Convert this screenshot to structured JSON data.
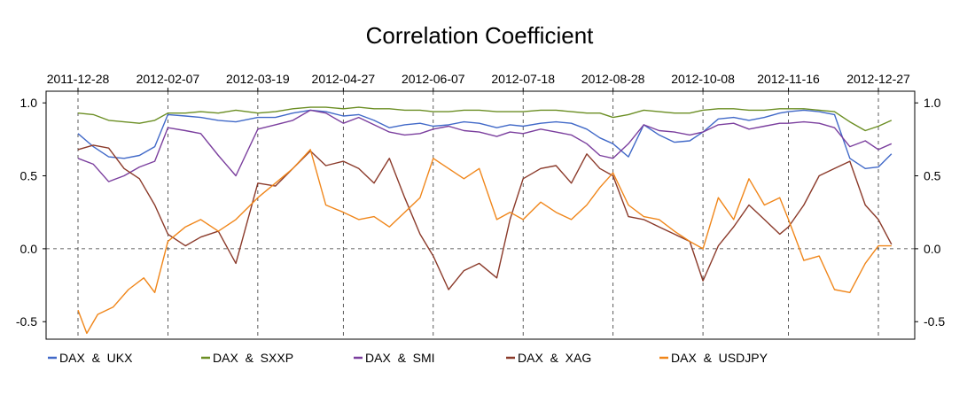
{
  "chart_data": {
    "type": "line",
    "title": "Correlation Coefficient",
    "x_tick_labels": [
      "2011-12-28",
      "2012-02-07",
      "2012-03-19",
      "2012-04-27",
      "2012-06-07",
      "2012-07-18",
      "2012-08-28",
      "2012-10-08",
      "2012-11-16",
      "2012-12-27"
    ],
    "y_tick_labels": [
      "1.0",
      "0.5",
      "0.0",
      "-0.5"
    ],
    "ylim": [
      -0.62,
      1.08
    ],
    "xlim": [
      "2011-12-28",
      "2013-01-02"
    ],
    "grid": "dashed vertical at each x tick, dashed horizontal at 0.0",
    "legend_position": "bottom",
    "series": [
      {
        "name": "DAX  &  UKX",
        "color": "#4169c8",
        "points": [
          [
            "2011-12-28",
            0.79
          ],
          [
            "2012-01-04",
            0.7
          ],
          [
            "2012-01-11",
            0.63
          ],
          [
            "2012-01-18",
            0.62
          ],
          [
            "2012-01-25",
            0.64
          ],
          [
            "2012-02-01",
            0.7
          ],
          [
            "2012-02-07",
            0.92
          ],
          [
            "2012-02-15",
            0.91
          ],
          [
            "2012-02-22",
            0.9
          ],
          [
            "2012-03-01",
            0.88
          ],
          [
            "2012-03-09",
            0.87
          ],
          [
            "2012-03-19",
            0.9
          ],
          [
            "2012-03-27",
            0.9
          ],
          [
            "2012-04-04",
            0.93
          ],
          [
            "2012-04-12",
            0.95
          ],
          [
            "2012-04-19",
            0.94
          ],
          [
            "2012-04-27",
            0.91
          ],
          [
            "2012-05-04",
            0.92
          ],
          [
            "2012-05-11",
            0.88
          ],
          [
            "2012-05-18",
            0.83
          ],
          [
            "2012-05-25",
            0.85
          ],
          [
            "2012-06-01",
            0.86
          ],
          [
            "2012-06-07",
            0.84
          ],
          [
            "2012-06-14",
            0.85
          ],
          [
            "2012-06-21",
            0.87
          ],
          [
            "2012-06-28",
            0.86
          ],
          [
            "2012-07-06",
            0.83
          ],
          [
            "2012-07-12",
            0.85
          ],
          [
            "2012-07-18",
            0.84
          ],
          [
            "2012-07-26",
            0.86
          ],
          [
            "2012-08-02",
            0.87
          ],
          [
            "2012-08-09",
            0.86
          ],
          [
            "2012-08-16",
            0.82
          ],
          [
            "2012-08-22",
            0.76
          ],
          [
            "2012-08-28",
            0.72
          ],
          [
            "2012-09-04",
            0.63
          ],
          [
            "2012-09-11",
            0.85
          ],
          [
            "2012-09-18",
            0.78
          ],
          [
            "2012-09-25",
            0.73
          ],
          [
            "2012-10-02",
            0.74
          ],
          [
            "2012-10-08",
            0.8
          ],
          [
            "2012-10-15",
            0.89
          ],
          [
            "2012-10-22",
            0.9
          ],
          [
            "2012-10-29",
            0.88
          ],
          [
            "2012-11-05",
            0.9
          ],
          [
            "2012-11-12",
            0.93
          ],
          [
            "2012-11-16",
            0.94
          ],
          [
            "2012-11-23",
            0.95
          ],
          [
            "2012-11-30",
            0.94
          ],
          [
            "2012-12-07",
            0.92
          ],
          [
            "2012-12-14",
            0.62
          ],
          [
            "2012-12-21",
            0.55
          ],
          [
            "2012-12-27",
            0.56
          ],
          [
            "2013-01-02",
            0.65
          ]
        ]
      },
      {
        "name": "DAX  &  SXXP",
        "color": "#6b8e23",
        "points": [
          [
            "2011-12-28",
            0.93
          ],
          [
            "2012-01-04",
            0.92
          ],
          [
            "2012-01-11",
            0.88
          ],
          [
            "2012-01-18",
            0.87
          ],
          [
            "2012-01-25",
            0.86
          ],
          [
            "2012-02-01",
            0.88
          ],
          [
            "2012-02-07",
            0.93
          ],
          [
            "2012-02-15",
            0.93
          ],
          [
            "2012-02-22",
            0.94
          ],
          [
            "2012-03-01",
            0.93
          ],
          [
            "2012-03-09",
            0.95
          ],
          [
            "2012-03-19",
            0.93
          ],
          [
            "2012-03-27",
            0.94
          ],
          [
            "2012-04-04",
            0.96
          ],
          [
            "2012-04-12",
            0.97
          ],
          [
            "2012-04-19",
            0.97
          ],
          [
            "2012-04-27",
            0.96
          ],
          [
            "2012-05-04",
            0.97
          ],
          [
            "2012-05-11",
            0.96
          ],
          [
            "2012-05-18",
            0.96
          ],
          [
            "2012-05-25",
            0.95
          ],
          [
            "2012-06-01",
            0.95
          ],
          [
            "2012-06-07",
            0.94
          ],
          [
            "2012-06-14",
            0.94
          ],
          [
            "2012-06-21",
            0.95
          ],
          [
            "2012-06-28",
            0.95
          ],
          [
            "2012-07-06",
            0.94
          ],
          [
            "2012-07-12",
            0.94
          ],
          [
            "2012-07-18",
            0.94
          ],
          [
            "2012-07-26",
            0.95
          ],
          [
            "2012-08-02",
            0.95
          ],
          [
            "2012-08-09",
            0.94
          ],
          [
            "2012-08-16",
            0.93
          ],
          [
            "2012-08-22",
            0.93
          ],
          [
            "2012-08-28",
            0.9
          ],
          [
            "2012-09-04",
            0.92
          ],
          [
            "2012-09-11",
            0.95
          ],
          [
            "2012-09-18",
            0.94
          ],
          [
            "2012-09-25",
            0.93
          ],
          [
            "2012-10-02",
            0.93
          ],
          [
            "2012-10-08",
            0.95
          ],
          [
            "2012-10-15",
            0.96
          ],
          [
            "2012-10-22",
            0.96
          ],
          [
            "2012-10-29",
            0.95
          ],
          [
            "2012-11-05",
            0.95
          ],
          [
            "2012-11-12",
            0.96
          ],
          [
            "2012-11-16",
            0.96
          ],
          [
            "2012-11-23",
            0.96
          ],
          [
            "2012-11-30",
            0.95
          ],
          [
            "2012-12-07",
            0.94
          ],
          [
            "2012-12-14",
            0.87
          ],
          [
            "2012-12-21",
            0.81
          ],
          [
            "2012-12-27",
            0.84
          ],
          [
            "2013-01-02",
            0.88
          ]
        ]
      },
      {
        "name": "DAX  &  SMI",
        "color": "#7b3f9e",
        "points": [
          [
            "2011-12-28",
            0.62
          ],
          [
            "2012-01-04",
            0.58
          ],
          [
            "2012-01-11",
            0.46
          ],
          [
            "2012-01-18",
            0.5
          ],
          [
            "2012-01-25",
            0.56
          ],
          [
            "2012-02-01",
            0.6
          ],
          [
            "2012-02-07",
            0.83
          ],
          [
            "2012-02-15",
            0.81
          ],
          [
            "2012-02-22",
            0.79
          ],
          [
            "2012-03-01",
            0.64
          ],
          [
            "2012-03-09",
            0.5
          ],
          [
            "2012-03-19",
            0.82
          ],
          [
            "2012-03-27",
            0.85
          ],
          [
            "2012-04-04",
            0.88
          ],
          [
            "2012-04-12",
            0.95
          ],
          [
            "2012-04-19",
            0.93
          ],
          [
            "2012-04-27",
            0.86
          ],
          [
            "2012-05-04",
            0.9
          ],
          [
            "2012-05-11",
            0.85
          ],
          [
            "2012-05-18",
            0.8
          ],
          [
            "2012-05-25",
            0.78
          ],
          [
            "2012-06-01",
            0.79
          ],
          [
            "2012-06-07",
            0.82
          ],
          [
            "2012-06-14",
            0.84
          ],
          [
            "2012-06-21",
            0.81
          ],
          [
            "2012-06-28",
            0.8
          ],
          [
            "2012-07-06",
            0.77
          ],
          [
            "2012-07-12",
            0.8
          ],
          [
            "2012-07-18",
            0.79
          ],
          [
            "2012-07-26",
            0.82
          ],
          [
            "2012-08-02",
            0.8
          ],
          [
            "2012-08-09",
            0.78
          ],
          [
            "2012-08-16",
            0.72
          ],
          [
            "2012-08-22",
            0.64
          ],
          [
            "2012-08-28",
            0.62
          ],
          [
            "2012-09-04",
            0.72
          ],
          [
            "2012-09-11",
            0.85
          ],
          [
            "2012-09-18",
            0.81
          ],
          [
            "2012-09-25",
            0.8
          ],
          [
            "2012-10-02",
            0.78
          ],
          [
            "2012-10-08",
            0.8
          ],
          [
            "2012-10-15",
            0.85
          ],
          [
            "2012-10-22",
            0.86
          ],
          [
            "2012-10-29",
            0.82
          ],
          [
            "2012-11-05",
            0.84
          ],
          [
            "2012-11-12",
            0.86
          ],
          [
            "2012-11-16",
            0.86
          ],
          [
            "2012-11-23",
            0.87
          ],
          [
            "2012-11-30",
            0.86
          ],
          [
            "2012-12-07",
            0.83
          ],
          [
            "2012-12-14",
            0.7
          ],
          [
            "2012-12-21",
            0.74
          ],
          [
            "2012-12-27",
            0.68
          ],
          [
            "2013-01-02",
            0.72
          ]
        ]
      },
      {
        "name": "DAX  &  XAG",
        "color": "#8b3a2a",
        "points": [
          [
            "2011-12-28",
            0.68
          ],
          [
            "2012-01-04",
            0.71
          ],
          [
            "2012-01-11",
            0.69
          ],
          [
            "2012-01-18",
            0.55
          ],
          [
            "2012-01-25",
            0.48
          ],
          [
            "2012-02-01",
            0.3
          ],
          [
            "2012-02-07",
            0.1
          ],
          [
            "2012-02-15",
            0.02
          ],
          [
            "2012-02-22",
            0.08
          ],
          [
            "2012-03-01",
            0.12
          ],
          [
            "2012-03-09",
            -0.1
          ],
          [
            "2012-03-19",
            0.45
          ],
          [
            "2012-03-27",
            0.43
          ],
          [
            "2012-04-04",
            0.55
          ],
          [
            "2012-04-12",
            0.67
          ],
          [
            "2012-04-19",
            0.57
          ],
          [
            "2012-04-27",
            0.6
          ],
          [
            "2012-05-04",
            0.55
          ],
          [
            "2012-05-11",
            0.45
          ],
          [
            "2012-05-18",
            0.62
          ],
          [
            "2012-05-25",
            0.35
          ],
          [
            "2012-06-01",
            0.1
          ],
          [
            "2012-06-07",
            -0.05
          ],
          [
            "2012-06-14",
            -0.28
          ],
          [
            "2012-06-21",
            -0.15
          ],
          [
            "2012-06-28",
            -0.1
          ],
          [
            "2012-07-06",
            -0.2
          ],
          [
            "2012-07-12",
            0.2
          ],
          [
            "2012-07-18",
            0.48
          ],
          [
            "2012-07-26",
            0.55
          ],
          [
            "2012-08-02",
            0.57
          ],
          [
            "2012-08-09",
            0.45
          ],
          [
            "2012-08-16",
            0.65
          ],
          [
            "2012-08-22",
            0.55
          ],
          [
            "2012-08-28",
            0.5
          ],
          [
            "2012-09-04",
            0.22
          ],
          [
            "2012-09-11",
            0.2
          ],
          [
            "2012-09-18",
            0.15
          ],
          [
            "2012-09-25",
            0.1
          ],
          [
            "2012-10-02",
            0.05
          ],
          [
            "2012-10-08",
            -0.22
          ],
          [
            "2012-10-15",
            0.02
          ],
          [
            "2012-10-22",
            0.15
          ],
          [
            "2012-10-29",
            0.3
          ],
          [
            "2012-11-05",
            0.2
          ],
          [
            "2012-11-12",
            0.1
          ],
          [
            "2012-11-16",
            0.15
          ],
          [
            "2012-11-23",
            0.3
          ],
          [
            "2012-11-30",
            0.5
          ],
          [
            "2012-12-07",
            0.55
          ],
          [
            "2012-12-14",
            0.6
          ],
          [
            "2012-12-21",
            0.3
          ],
          [
            "2012-12-27",
            0.2
          ],
          [
            "2013-01-02",
            0.03
          ]
        ]
      },
      {
        "name": "DAX  &  USDJPY",
        "color": "#f0861a",
        "points": [
          [
            "2011-12-28",
            -0.42
          ],
          [
            "2012-01-01",
            -0.58
          ],
          [
            "2012-01-06",
            -0.45
          ],
          [
            "2012-01-13",
            -0.4
          ],
          [
            "2012-01-20",
            -0.28
          ],
          [
            "2012-01-27",
            -0.2
          ],
          [
            "2012-02-01",
            -0.3
          ],
          [
            "2012-02-07",
            0.05
          ],
          [
            "2012-02-15",
            0.15
          ],
          [
            "2012-02-22",
            0.2
          ],
          [
            "2012-03-01",
            0.12
          ],
          [
            "2012-03-09",
            0.2
          ],
          [
            "2012-03-19",
            0.35
          ],
          [
            "2012-03-27",
            0.45
          ],
          [
            "2012-04-04",
            0.55
          ],
          [
            "2012-04-12",
            0.68
          ],
          [
            "2012-04-19",
            0.3
          ],
          [
            "2012-04-27",
            0.25
          ],
          [
            "2012-05-04",
            0.2
          ],
          [
            "2012-05-11",
            0.22
          ],
          [
            "2012-05-18",
            0.15
          ],
          [
            "2012-05-25",
            0.25
          ],
          [
            "2012-06-01",
            0.35
          ],
          [
            "2012-06-07",
            0.62
          ],
          [
            "2012-06-14",
            0.55
          ],
          [
            "2012-06-21",
            0.48
          ],
          [
            "2012-06-28",
            0.55
          ],
          [
            "2012-07-06",
            0.2
          ],
          [
            "2012-07-12",
            0.25
          ],
          [
            "2012-07-18",
            0.2
          ],
          [
            "2012-07-26",
            0.32
          ],
          [
            "2012-08-02",
            0.25
          ],
          [
            "2012-08-09",
            0.2
          ],
          [
            "2012-08-16",
            0.3
          ],
          [
            "2012-08-22",
            0.42
          ],
          [
            "2012-08-28",
            0.52
          ],
          [
            "2012-09-04",
            0.3
          ],
          [
            "2012-09-11",
            0.22
          ],
          [
            "2012-09-18",
            0.2
          ],
          [
            "2012-09-25",
            0.12
          ],
          [
            "2012-10-02",
            0.05
          ],
          [
            "2012-10-08",
            0.0
          ],
          [
            "2012-10-15",
            0.35
          ],
          [
            "2012-10-22",
            0.2
          ],
          [
            "2012-10-29",
            0.48
          ],
          [
            "2012-11-05",
            0.3
          ],
          [
            "2012-11-12",
            0.35
          ],
          [
            "2012-11-16",
            0.2
          ],
          [
            "2012-11-23",
            -0.08
          ],
          [
            "2012-11-30",
            -0.05
          ],
          [
            "2012-12-07",
            -0.28
          ],
          [
            "2012-12-14",
            -0.3
          ],
          [
            "2012-12-21",
            -0.1
          ],
          [
            "2012-12-27",
            0.02
          ],
          [
            "2013-01-02",
            0.02
          ]
        ]
      }
    ]
  }
}
